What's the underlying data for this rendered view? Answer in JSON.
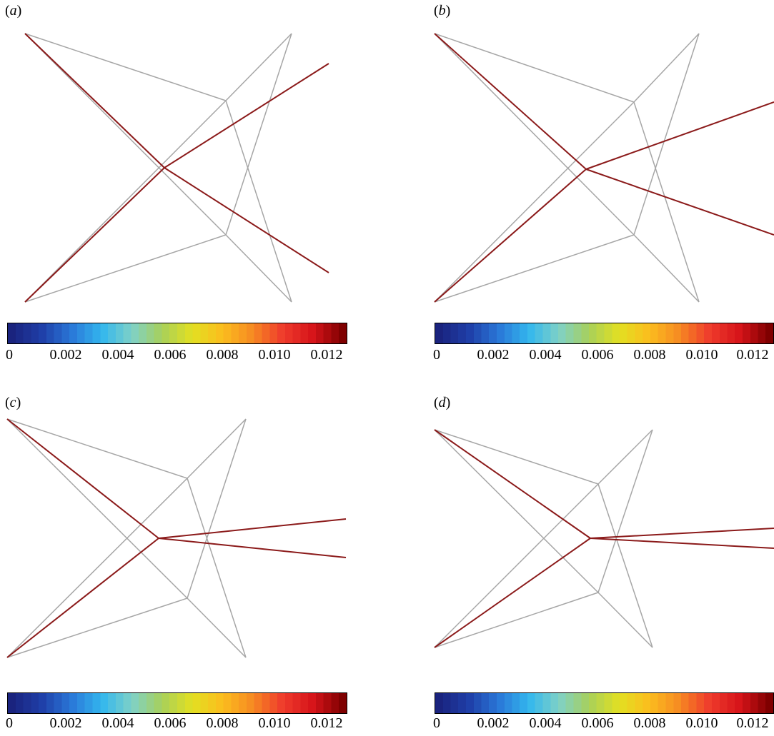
{
  "panels": [
    {
      "label_letter": "a",
      "colorbar_ticks": [
        "0",
        "0.002",
        "0.004",
        "0.006",
        "0.008",
        "0.010",
        "0.012"
      ]
    },
    {
      "label_letter": "b",
      "colorbar_ticks": [
        "0",
        "0.002",
        "0.004",
        "0.006",
        "0.008",
        "0.010",
        "0.012"
      ]
    },
    {
      "label_letter": "c",
      "colorbar_ticks": [
        "0",
        "0.002",
        "0.004",
        "0.006",
        "0.008",
        "0.010",
        "0.012"
      ]
    },
    {
      "label_letter": "d",
      "colorbar_ticks": [
        "0",
        "0.002",
        "0.004",
        "0.006",
        "0.008",
        "0.010",
        "0.012"
      ]
    }
  ],
  "colors": {
    "member_gray": "#a6a6a6",
    "active_member": "#8b1a1a",
    "colormap": [
      "#1a237e",
      "#1f3fa8",
      "#2a78d8",
      "#33b7ee",
      "#7fd1c7",
      "#a8d05a",
      "#e3e021",
      "#fbbd1e",
      "#f68a22",
      "#ef3b2c",
      "#d6141a",
      "#7f0000"
    ]
  }
}
